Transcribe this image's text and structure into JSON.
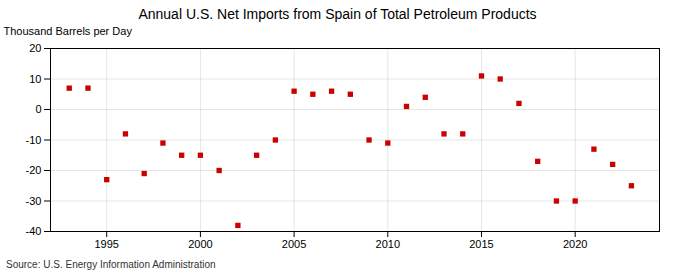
{
  "chart_data": {
    "type": "scatter",
    "title": "Annual U.S. Net Imports from Spain of Total Petroleum Products",
    "ylabel": "Thousand Barrels per Day",
    "source": "Source: U.S. Energy Information Administration",
    "x": [
      1993,
      1994,
      1995,
      1996,
      1997,
      1998,
      1999,
      2000,
      2001,
      2002,
      2003,
      2004,
      2005,
      2006,
      2007,
      2008,
      2009,
      2010,
      2011,
      2012,
      2013,
      2014,
      2015,
      2016,
      2017,
      2018,
      2019,
      2020,
      2021,
      2022,
      2023
    ],
    "values": [
      7,
      7,
      -23,
      -8,
      -21,
      -11,
      -15,
      -15,
      -20,
      -38,
      -15,
      -10,
      6,
      5,
      6,
      5,
      -10,
      -11,
      1,
      4,
      -8,
      -8,
      11,
      10,
      2,
      -17,
      -30,
      -30,
      -13,
      -18,
      -25
    ],
    "color": "#cc0000",
    "marker": "square",
    "xlim": [
      1992,
      2024.5
    ],
    "xticks": [
      1995,
      2000,
      2005,
      2010,
      2015,
      2020
    ],
    "ylim": [
      -40,
      20
    ],
    "yticks": [
      -40,
      -30,
      -20,
      -10,
      0,
      10,
      20
    ],
    "grid": true
  }
}
